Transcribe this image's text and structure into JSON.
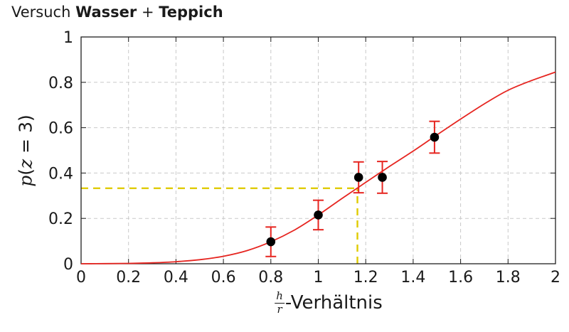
{
  "title": {
    "parts": [
      {
        "text": "Versuch ",
        "bold": false
      },
      {
        "text": "Wasser",
        "bold": true
      },
      {
        "text": " + ",
        "bold": false
      },
      {
        "text": "Teppich",
        "bold": true
      }
    ]
  },
  "chart_data": {
    "type": "line",
    "title": "Versuch Wasser + Teppich",
    "xlabel": {
      "numerator": "h",
      "denominator": "r",
      "suffix": "-Verhältnis"
    },
    "ylabel": {
      "parts": [
        {
          "text": "p",
          "italic": true
        },
        {
          "text": "(",
          "italic": false
        },
        {
          "text": "z",
          "italic": true
        },
        {
          "text": " = 3)",
          "italic": false
        }
      ]
    },
    "xlim": [
      0,
      2
    ],
    "ylim": [
      0,
      1
    ],
    "xticks": [
      0,
      0.2,
      0.4,
      0.6,
      0.8,
      1,
      1.2,
      1.4,
      1.6,
      1.8,
      2
    ],
    "yticks": [
      0,
      0.2,
      0.4,
      0.6,
      0.8,
      1
    ],
    "grid": {
      "show": true,
      "color": "#c9c9c9",
      "dash": "5 4"
    },
    "axis_color": "#1f1f1f",
    "legend": null,
    "series": [
      {
        "name": "fit-curve",
        "type": "line",
        "color": "#e62520",
        "x": [
          0,
          0.1,
          0.2,
          0.3,
          0.4,
          0.5,
          0.6,
          0.7,
          0.8,
          0.9,
          1.0,
          1.1,
          1.2,
          1.3,
          1.4,
          1.5,
          1.6,
          1.7,
          1.8,
          1.9,
          2.0
        ],
        "y": [
          0.0,
          0.0005,
          0.0015,
          0.004,
          0.009,
          0.018,
          0.033,
          0.058,
          0.097,
          0.149,
          0.215,
          0.288,
          0.359,
          0.429,
          0.497,
          0.568,
          0.638,
          0.705,
          0.765,
          0.808,
          0.845
        ]
      },
      {
        "name": "measurements",
        "type": "scatter",
        "marker_color": "#000000",
        "errorbar_color": "#e62520",
        "points": [
          {
            "x": 0.8,
            "y": 0.097,
            "err": 0.065
          },
          {
            "x": 1.0,
            "y": 0.215,
            "err": 0.065
          },
          {
            "x": 1.17,
            "y": 0.381,
            "err": 0.068
          },
          {
            "x": 1.27,
            "y": 0.381,
            "err": 0.07
          },
          {
            "x": 1.49,
            "y": 0.558,
            "err": 0.07
          }
        ]
      },
      {
        "name": "reference-crosshair",
        "type": "reference",
        "color": "#e0cb00",
        "dash": "10 7",
        "x_value": 1.165,
        "y_value": 0.333
      }
    ]
  }
}
